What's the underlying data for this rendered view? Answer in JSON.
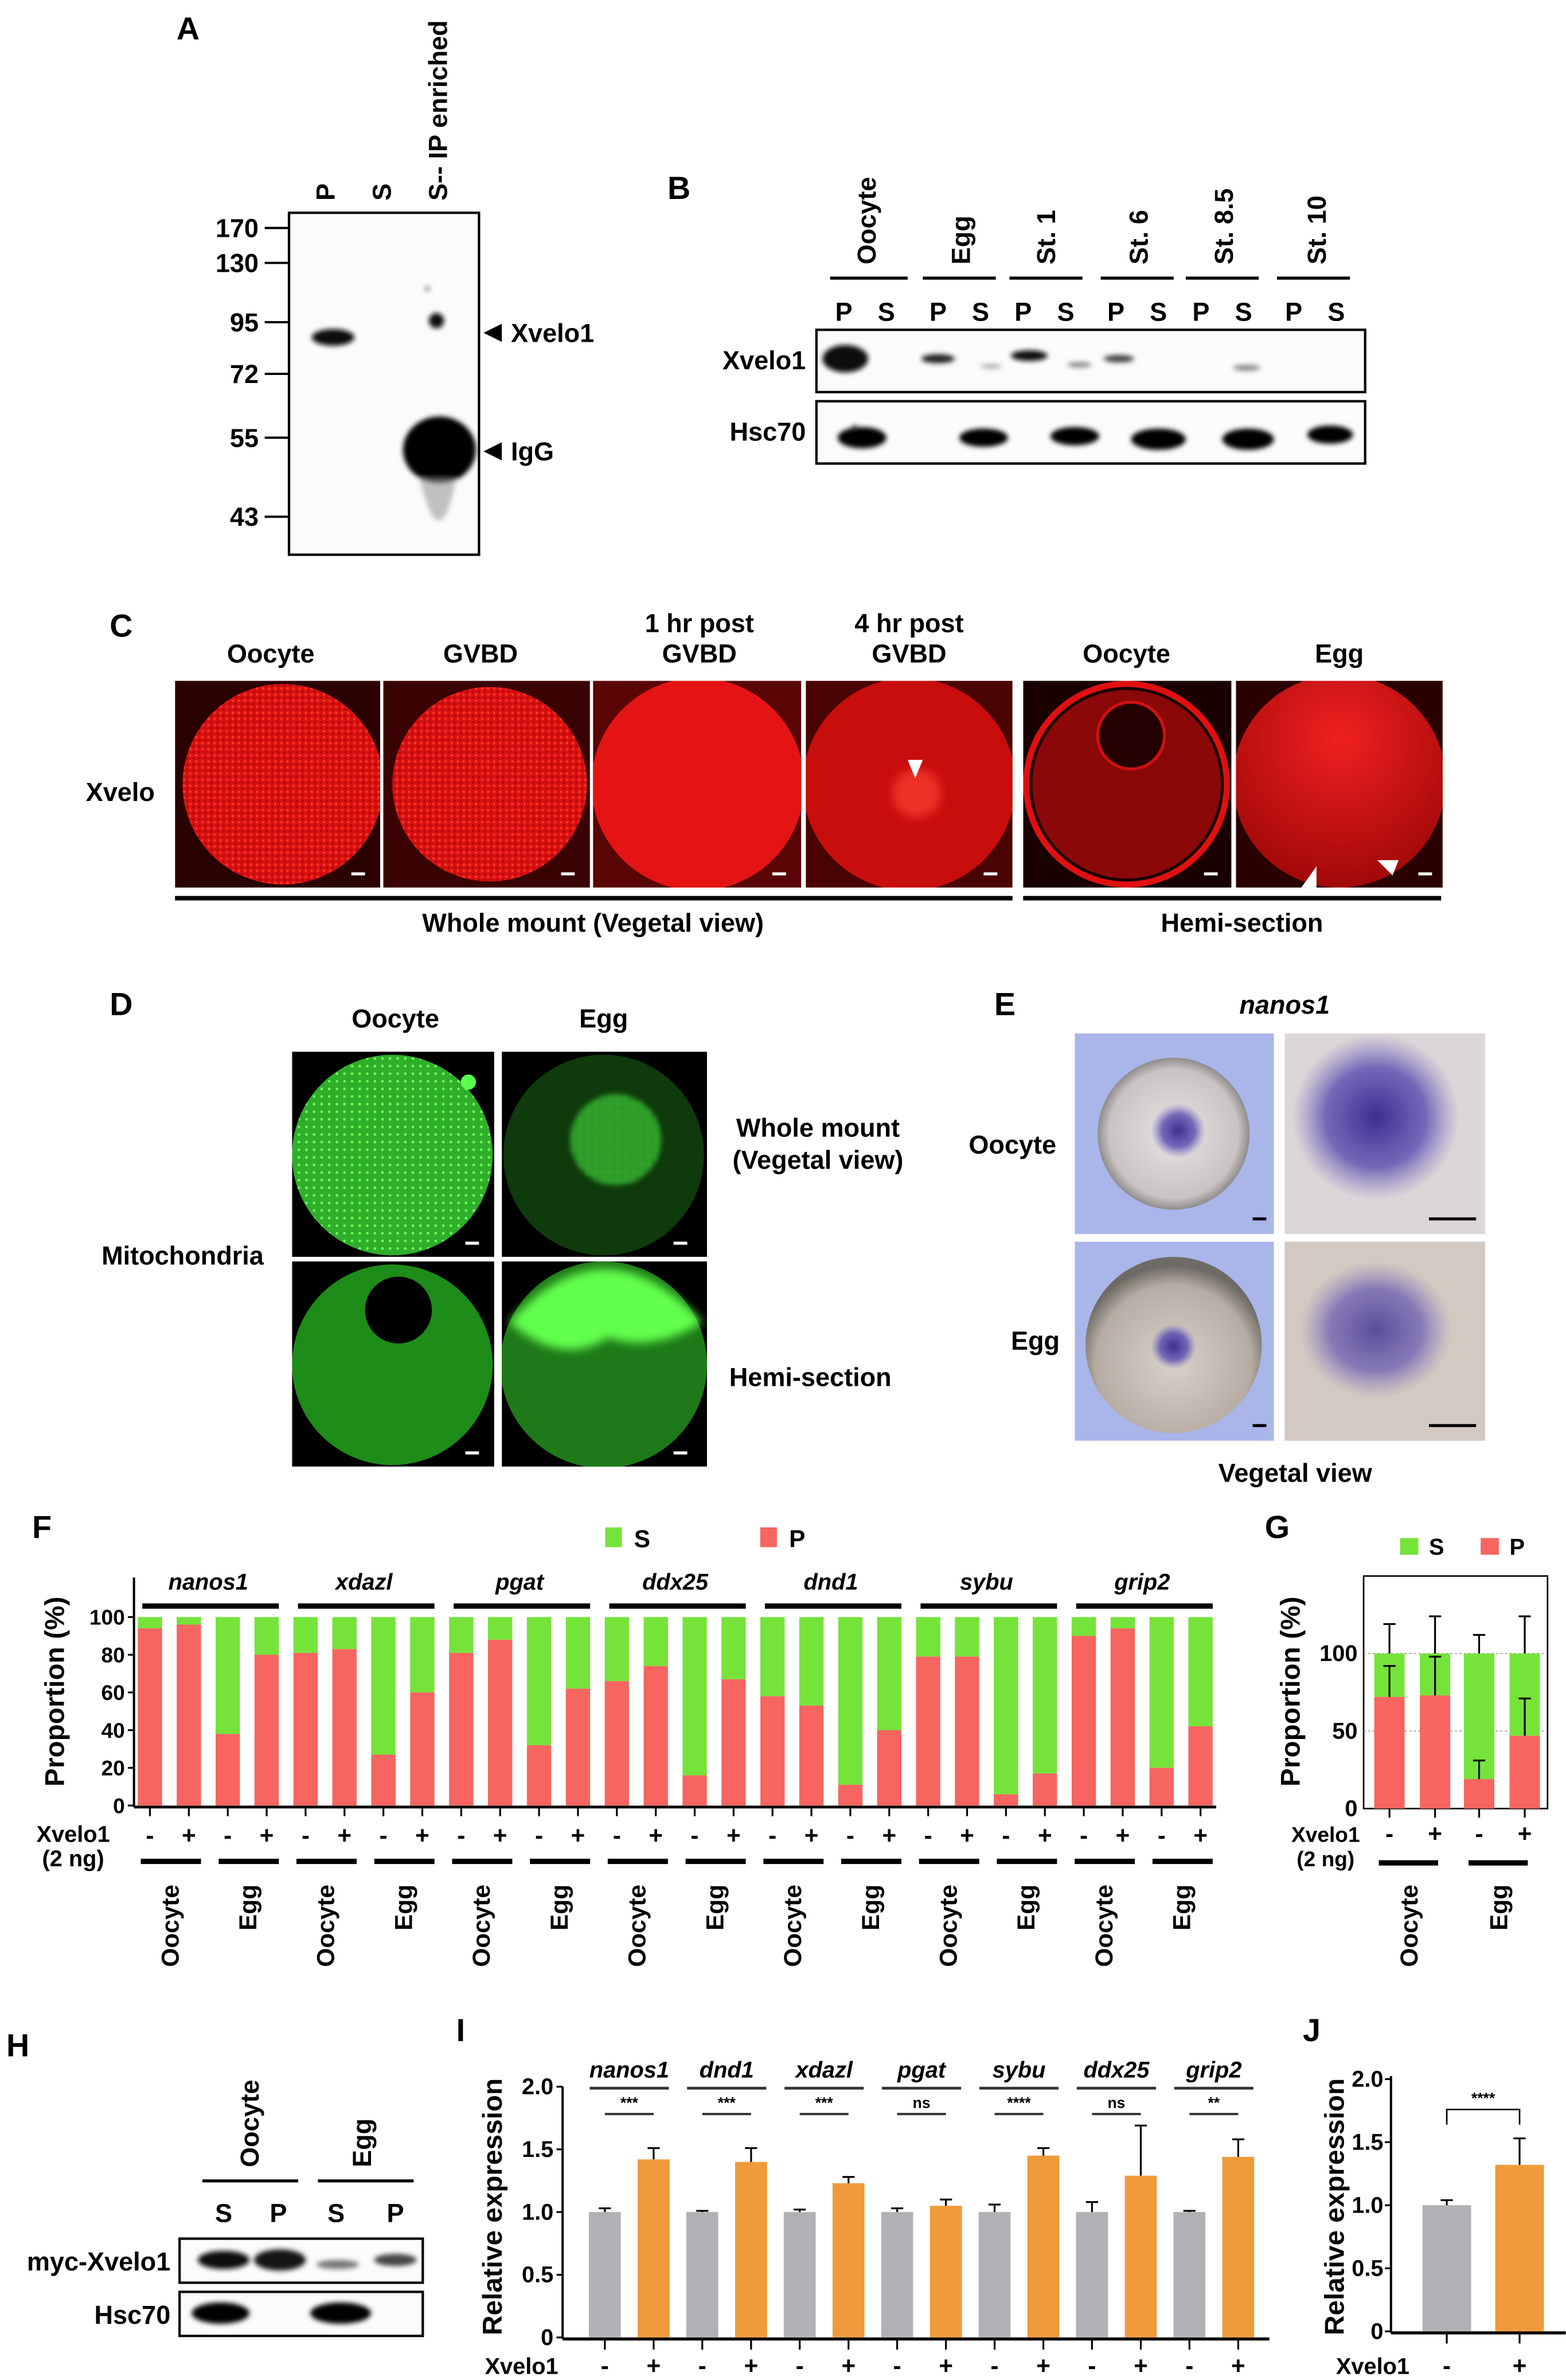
{
  "figure": {
    "A": {
      "label": "A",
      "lanes": [
        "P",
        "S",
        "S-- IP enriched"
      ],
      "mw_markers": [
        "170",
        "130",
        "95",
        "72",
        "55",
        "43"
      ],
      "arrow_labels": [
        "Xvelo1",
        "IgG"
      ]
    },
    "B": {
      "label": "B",
      "stages": [
        "Oocyte",
        "Egg",
        "St. 1",
        "St. 6",
        "St. 8.5",
        "St. 10"
      ],
      "fractions": [
        "P",
        "S"
      ],
      "rows": [
        "Xvelo1",
        "Hsc70"
      ]
    },
    "C": {
      "label": "C",
      "headers": [
        [
          "Oocyte"
        ],
        [
          "GVBD"
        ],
        [
          "1 hr post",
          "GVBD"
        ],
        [
          "4 hr post",
          "GVBD"
        ],
        [
          "Oocyte"
        ],
        [
          "Egg"
        ]
      ],
      "row_label": "Xvelo",
      "captions": [
        "Whole mount (Vegetal view)",
        "Hemi-section"
      ],
      "stain_color": "#e01010"
    },
    "D": {
      "label": "D",
      "headers": [
        "Oocyte",
        "Egg"
      ],
      "row_label": "Mitochondria",
      "side_labels": [
        "Whole mount",
        "(Vegetal view)",
        "Hemi-section"
      ],
      "stain_color": "#3fd43a"
    },
    "E": {
      "label": "E",
      "gene": "nanos1",
      "row_labels": [
        "Oocyte",
        "Egg"
      ],
      "caption": "Vegetal view"
    },
    "H": {
      "label": "H",
      "conditions": [
        "Oocyte",
        "Egg"
      ],
      "fractions": [
        "S",
        "P"
      ],
      "rows": [
        "myc-Xvelo1",
        "Hsc70"
      ]
    }
  },
  "chart_data": [
    {
      "panel": "F",
      "type": "bar",
      "stacked": true,
      "genes": [
        "nanos1",
        "xdazl",
        "pgat",
        "ddx25",
        "dnd1",
        "sybu",
        "grip2"
      ],
      "conditions": [
        "Oocyte",
        "Egg"
      ],
      "treatment_label": [
        "Xvelo1",
        "(2 ng)"
      ],
      "treatment_levels": [
        "-",
        "+"
      ],
      "ylabel": "Proportion (%)",
      "ylim": [
        0,
        100
      ],
      "yticks": [
        "0",
        "20",
        "40",
        "60",
        "80",
        "100"
      ],
      "legend": [
        {
          "name": "S",
          "color": "#76e33b"
        },
        {
          "name": "P",
          "color": "#f6655f"
        }
      ],
      "legend_position": "top",
      "series": [
        {
          "name": "P",
          "values": [
            94,
            96,
            38,
            80,
            81,
            83,
            27,
            60,
            81,
            88,
            32,
            62,
            66,
            74,
            16,
            67,
            58,
            53,
            11,
            40,
            79,
            79,
            6,
            17,
            90,
            94,
            20,
            42
          ]
        },
        {
          "name": "S",
          "values": [
            6,
            4,
            62,
            20,
            19,
            17,
            73,
            40,
            19,
            12,
            68,
            38,
            34,
            26,
            84,
            33,
            42,
            47,
            89,
            60,
            21,
            21,
            94,
            83,
            10,
            6,
            80,
            58
          ]
        }
      ]
    },
    {
      "panel": "G",
      "type": "bar",
      "stacked": true,
      "categories": [
        "Oocyte -",
        "Oocyte +",
        "Egg -",
        "Egg +"
      ],
      "conditions": [
        "Oocyte",
        "Egg"
      ],
      "treatment_label": [
        "Xvelo1",
        "(2 ng)"
      ],
      "treatment_levels": [
        "-",
        "+",
        "-",
        "+"
      ],
      "ylabel": "Proportion (%)",
      "ylim": [
        0,
        150
      ],
      "yticks": [
        "0",
        "50",
        "100"
      ],
      "legend": [
        {
          "name": "S",
          "color": "#76e33b"
        },
        {
          "name": "P",
          "color": "#f6655f"
        }
      ],
      "series": [
        {
          "name": "P",
          "values": [
            72,
            73,
            19,
            47
          ],
          "error_top": [
            92,
            98,
            31,
            71
          ]
        },
        {
          "name": "S",
          "values": [
            28,
            27,
            81,
            53
          ],
          "error_top": [
            119,
            124,
            112,
            124
          ]
        }
      ]
    },
    {
      "panel": "I",
      "type": "bar",
      "genes": [
        "nanos1",
        "dnd1",
        "xdazl",
        "pgat",
        "sybu",
        "ddx25",
        "grip2"
      ],
      "treatment_label": "Xvelo1",
      "treatment_levels": [
        "-",
        "+"
      ],
      "ylabel": "Relative expression",
      "ylim": [
        0,
        2.0
      ],
      "yticks": [
        "0",
        "0.5",
        "1.0",
        "1.5",
        "2.0"
      ],
      "colors": {
        "minus": "#b1b0b4",
        "plus": "#ef9a3b"
      },
      "series": [
        {
          "level": "-",
          "values": [
            1.0,
            1.0,
            1.0,
            1.0,
            1.0,
            1.0,
            1.0
          ],
          "error_top": [
            1.03,
            1.01,
            1.02,
            1.03,
            1.06,
            1.08,
            1.01
          ]
        },
        {
          "level": "+",
          "values": [
            1.42,
            1.4,
            1.23,
            1.05,
            1.45,
            1.29,
            1.44
          ],
          "error_top": [
            1.51,
            1.51,
            1.28,
            1.1,
            1.51,
            1.69,
            1.58
          ]
        }
      ],
      "significance": [
        "***",
        "***",
        "***",
        "ns",
        "****",
        "ns",
        "**"
      ]
    },
    {
      "panel": "J",
      "type": "bar",
      "treatment_label": "Xvelo1",
      "treatment_levels": [
        "-",
        "+"
      ],
      "ylabel": "Relative expression",
      "ylim": [
        0,
        2.0
      ],
      "yticks": [
        "0",
        "0.5",
        "1.0",
        "1.5",
        "2.0"
      ],
      "colors": {
        "minus": "#b1b0b4",
        "plus": "#ef9a3b"
      },
      "values": [
        1.0,
        1.32
      ],
      "error_top": [
        1.04,
        1.53
      ],
      "significance": "****"
    }
  ]
}
